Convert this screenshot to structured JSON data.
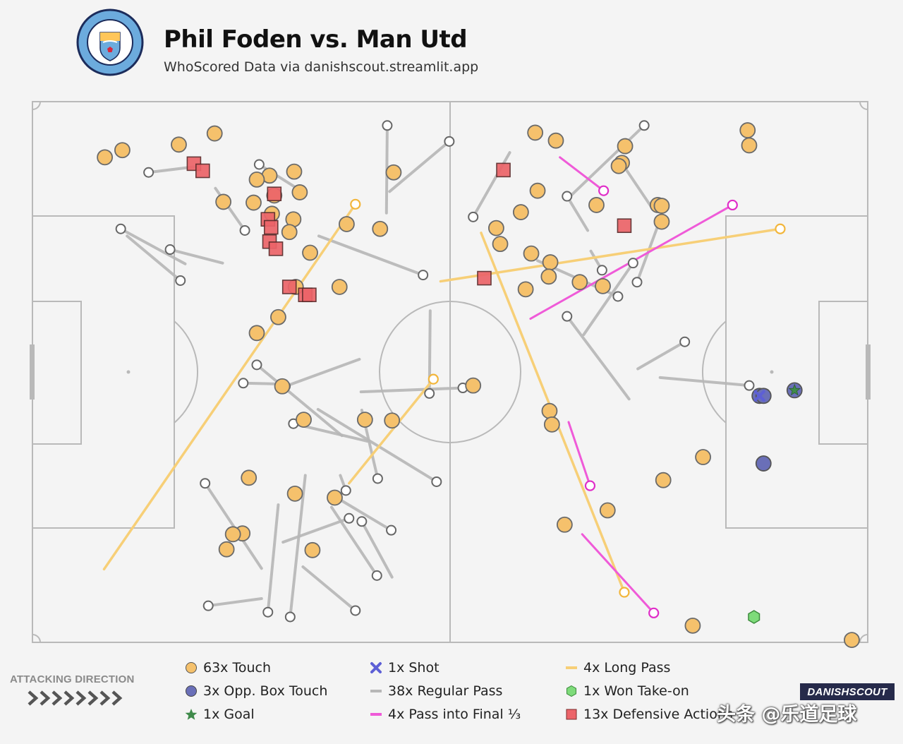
{
  "header": {
    "title": "Phil Foden vs. Man Utd",
    "subtitle": "WhoScored Data via danishscout.streamlit.app",
    "crest_text": "MANCHESTER CITY",
    "crest_years": [
      "18",
      "94"
    ]
  },
  "attacking_direction": {
    "label": "ATTACKING DIRECTION"
  },
  "legend": [
    {
      "key": "touch",
      "label": "63x Touch",
      "symbol": "circle",
      "color": "#f5c16c"
    },
    {
      "key": "opp_box_touch",
      "label": "3x Opp. Box Touch",
      "symbol": "circle",
      "color": "#6a6fb8"
    },
    {
      "key": "goal",
      "label": "1x Goal",
      "symbol": "star",
      "color": "#3f8a4a"
    },
    {
      "key": "shot",
      "label": "1x Shot",
      "symbol": "x",
      "color": "#5d5fd6"
    },
    {
      "key": "regular_pass",
      "label": "38x Regular Pass",
      "symbol": "line",
      "color": "#b7b7b7"
    },
    {
      "key": "pass_final_third",
      "label": "4x Pass into Final ⅓",
      "symbol": "line",
      "color": "#ef5ad8"
    },
    {
      "key": "long_pass",
      "label": "4x Long Pass",
      "symbol": "line",
      "color": "#f7cf77"
    },
    {
      "key": "won_takeon",
      "label": "1x Won Take-on",
      "symbol": "hexagon",
      "color": "#7edb7a"
    },
    {
      "key": "defensive_action",
      "label": "13x Defensive Actions",
      "symbol": "square",
      "color": "#ec6469"
    }
  ],
  "brand": "DANISHSCOUT",
  "watermark": "头条 @乐道足球",
  "chart_data": {
    "type": "scatter",
    "pitch": {
      "length": 105,
      "width": 68
    },
    "attacking_direction": "left-to-right",
    "colors": {
      "touch": "#f5c16c",
      "opp_box_touch": "#6a6fb8",
      "goal": "#3f8a4a",
      "shot": "#5d5fd6",
      "regular_pass": "#b7b7b7",
      "pass_final_third": "#ef5ad8",
      "long_pass": "#f7cf77",
      "won_takeon": "#7edb7a",
      "defensive_action": "#ec6469"
    },
    "passes": [
      {
        "type": "regular",
        "x1": 28.8,
        "y1": 62.5,
        "x2": 22.1,
        "y2": 63.4
      },
      {
        "type": "regular",
        "x1": 30.9,
        "y1": 50.7,
        "x2": 29.6,
        "y2": 64.2
      },
      {
        "type": "regular",
        "x1": 34.3,
        "y1": 47.0,
        "x2": 32.4,
        "y2": 64.8
      },
      {
        "type": "regular",
        "x1": 31.5,
        "y1": 55.4,
        "x2": 39.8,
        "y2": 52.4
      },
      {
        "type": "regular",
        "x1": 28.8,
        "y1": 58.7,
        "x2": 21.7,
        "y2": 48.0
      },
      {
        "type": "regular",
        "x1": 34.0,
        "y1": 58.5,
        "x2": 40.6,
        "y2": 64.0
      },
      {
        "type": "regular",
        "x1": 45.2,
        "y1": 59.8,
        "x2": 41.4,
        "y2": 52.8
      },
      {
        "type": "regular",
        "x1": 38.4,
        "y1": 49.9,
        "x2": 45.1,
        "y2": 53.9
      },
      {
        "type": "regular",
        "x1": 37.6,
        "y1": 51.0,
        "x2": 43.3,
        "y2": 59.6
      },
      {
        "type": "regular",
        "x1": 38.7,
        "y1": 47.0,
        "x2": 39.4,
        "y2": 48.9
      },
      {
        "type": "regular",
        "x1": 38.9,
        "y1": 42.0,
        "x2": 28.2,
        "y2": 33.1
      },
      {
        "type": "regular",
        "x1": 41.4,
        "y1": 38.8,
        "x2": 43.4,
        "y2": 47.4
      },
      {
        "type": "regular",
        "x1": 41.3,
        "y1": 36.5,
        "x2": 54.1,
        "y2": 36.0
      },
      {
        "type": "regular",
        "x1": 35.9,
        "y1": 38.7,
        "x2": 50.8,
        "y2": 47.8
      },
      {
        "type": "regular",
        "x1": 41.1,
        "y1": 32.4,
        "x2": 31.8,
        "y2": 35.8
      },
      {
        "type": "regular",
        "x1": 30.6,
        "y1": 35.5,
        "x2": 26.5,
        "y2": 35.4
      },
      {
        "type": "regular",
        "x1": 36.0,
        "y1": 16.9,
        "x2": 49.1,
        "y2": 21.8
      },
      {
        "type": "regular",
        "x1": 23.9,
        "y1": 20.3,
        "x2": 17.3,
        "y2": 18.6
      },
      {
        "type": "regular",
        "x1": 33.9,
        "y1": 11.3,
        "x2": 28.5,
        "y2": 7.9
      },
      {
        "type": "regular",
        "x1": 44.9,
        "y1": 11.3,
        "x2": 52.4,
        "y2": 5.0
      },
      {
        "type": "regular",
        "x1": 23.0,
        "y1": 10.9,
        "x2": 26.7,
        "y2": 16.2
      },
      {
        "type": "regular",
        "x1": 11.9,
        "y1": 16.9,
        "x2": 18.6,
        "y2": 22.5
      },
      {
        "type": "regular",
        "x1": 19.2,
        "y1": 20.4,
        "x2": 11.1,
        "y2": 16.0
      },
      {
        "type": "regular",
        "x1": 20.3,
        "y1": 8.2,
        "x2": 14.6,
        "y2": 8.9
      },
      {
        "type": "regular",
        "x1": 42.1,
        "y1": 42.7,
        "x2": 32.8,
        "y2": 40.5
      },
      {
        "type": "regular",
        "x1": 44.5,
        "y1": 14.0,
        "x2": 44.6,
        "y2": 3.0
      },
      {
        "type": "regular",
        "x1": 50.0,
        "y1": 26.3,
        "x2": 49.9,
        "y2": 36.7
      },
      {
        "type": "regular",
        "x1": 60.0,
        "y1": 6.4,
        "x2": 55.4,
        "y2": 14.5
      },
      {
        "type": "regular",
        "x1": 63.5,
        "y1": 20.0,
        "x2": 73.6,
        "y2": 24.5
      },
      {
        "type": "regular",
        "x1": 70.2,
        "y1": 18.8,
        "x2": 71.6,
        "y2": 21.2
      },
      {
        "type": "regular",
        "x1": 69.3,
        "y1": 29.3,
        "x2": 75.5,
        "y2": 20.3
      },
      {
        "type": "regular",
        "x1": 76.1,
        "y1": 33.6,
        "x2": 82.0,
        "y2": 30.2
      },
      {
        "type": "regular",
        "x1": 69.8,
        "y1": 16.2,
        "x2": 67.2,
        "y2": 11.9
      },
      {
        "type": "regular",
        "x1": 77.7,
        "y1": 13.1,
        "x2": 74.0,
        "y2": 7.6
      },
      {
        "type": "regular",
        "x1": 78.9,
        "y1": 34.7,
        "x2": 90.1,
        "y2": 35.7
      },
      {
        "type": "regular",
        "x1": 75.0,
        "y1": 37.4,
        "x2": 67.2,
        "y2": 27.0
      },
      {
        "type": "regular",
        "x1": 79.1,
        "y1": 14.3,
        "x2": 76.0,
        "y2": 22.7
      },
      {
        "type": "regular",
        "x1": 67.6,
        "y1": 11.9,
        "x2": 76.9,
        "y2": 3.0
      }
    ],
    "long_passes": [
      {
        "x1": 9.0,
        "y1": 58.8,
        "x2": 40.6,
        "y2": 12.9
      },
      {
        "x1": 39.8,
        "y1": 48.0,
        "x2": 50.4,
        "y2": 34.9
      },
      {
        "x1": 56.4,
        "y1": 16.5,
        "x2": 74.4,
        "y2": 61.7
      },
      {
        "x1": 51.3,
        "y1": 22.6,
        "x2": 94.0,
        "y2": 16.0
      }
    ],
    "passes_into_final_third": [
      {
        "x1": 66.3,
        "y1": 7.0,
        "x2": 71.8,
        "y2": 11.2
      },
      {
        "x1": 67.4,
        "y1": 40.3,
        "x2": 70.1,
        "y2": 48.3
      },
      {
        "x1": 69.1,
        "y1": 54.4,
        "x2": 78.1,
        "y2": 64.3
      },
      {
        "x1": 62.6,
        "y1": 27.3,
        "x2": 88.0,
        "y2": 13.0
      }
    ],
    "touches": [
      [
        18.4,
        5.4
      ],
      [
        22.9,
        4.0
      ],
      [
        29.8,
        9.3
      ],
      [
        28.2,
        9.8
      ],
      [
        32.9,
        8.8
      ],
      [
        33.6,
        11.4
      ],
      [
        32.8,
        14.8
      ],
      [
        32.3,
        16.4
      ],
      [
        24.0,
        12.6
      ],
      [
        27.8,
        12.7
      ],
      [
        30.4,
        11.8
      ],
      [
        30.1,
        14.1
      ],
      [
        45.4,
        8.9
      ],
      [
        43.7,
        16.0
      ],
      [
        39.5,
        15.4
      ],
      [
        34.9,
        19.0
      ],
      [
        33.1,
        23.3
      ],
      [
        30.9,
        27.1
      ],
      [
        38.6,
        23.3
      ],
      [
        28.2,
        29.1
      ],
      [
        31.4,
        35.8
      ],
      [
        41.8,
        40.0
      ],
      [
        34.1,
        40.0
      ],
      [
        45.2,
        40.1
      ],
      [
        27.2,
        47.3
      ],
      [
        33.0,
        49.3
      ],
      [
        24.4,
        56.3
      ],
      [
        26.4,
        54.3
      ],
      [
        38.0,
        49.8
      ],
      [
        55.4,
        35.7
      ],
      [
        58.3,
        15.9
      ],
      [
        63.2,
        3.9
      ],
      [
        65.8,
        4.9
      ],
      [
        63.5,
        11.2
      ],
      [
        61.4,
        13.9
      ],
      [
        58.8,
        17.9
      ],
      [
        62.7,
        19.1
      ],
      [
        65.1,
        20.2
      ],
      [
        64.9,
        22.0
      ],
      [
        70.9,
        13.0
      ],
      [
        71.7,
        23.2
      ],
      [
        78.6,
        13.0
      ],
      [
        79.1,
        13.1
      ],
      [
        79.1,
        15.1
      ],
      [
        74.1,
        7.7
      ],
      [
        74.5,
        5.6
      ],
      [
        73.7,
        8.1
      ],
      [
        89.9,
        3.6
      ],
      [
        90.1,
        5.5
      ],
      [
        62.0,
        23.6
      ],
      [
        65.0,
        38.9
      ],
      [
        65.3,
        40.6
      ],
      [
        66.9,
        53.2
      ],
      [
        72.3,
        51.4
      ],
      [
        84.3,
        44.7
      ],
      [
        83.0,
        65.9
      ],
      [
        79.3,
        47.6
      ],
      [
        103.0,
        67.7
      ],
      [
        11.3,
        6.1
      ],
      [
        9.1,
        7.0
      ],
      [
        25.2,
        54.4
      ],
      [
        35.2,
        56.4
      ],
      [
        68.8,
        22.7
      ]
    ],
    "opp_box_touches": [
      [
        91.9,
        45.5
      ],
      [
        91.4,
        37.0
      ],
      [
        91.9,
        37.0
      ]
    ],
    "shots": [
      [
        91.4,
        37.0
      ]
    ],
    "goals": [
      [
        95.8,
        36.3
      ]
    ],
    "won_takeons": [
      [
        90.7,
        64.8
      ]
    ],
    "defensive_actions": [
      [
        20.3,
        7.8
      ],
      [
        21.4,
        8.7
      ],
      [
        30.4,
        11.6
      ],
      [
        29.6,
        14.8
      ],
      [
        30.0,
        15.8
      ],
      [
        29.8,
        17.6
      ],
      [
        30.6,
        18.5
      ],
      [
        32.3,
        23.3
      ],
      [
        34.3,
        24.3
      ],
      [
        34.8,
        24.3
      ],
      [
        56.8,
        22.2
      ],
      [
        59.2,
        8.6
      ],
      [
        74.4,
        15.6
      ]
    ]
  }
}
